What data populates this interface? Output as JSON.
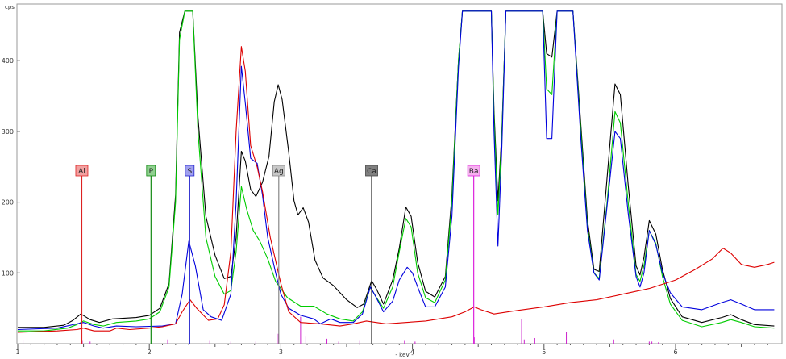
{
  "chart_data": {
    "type": "line",
    "title": "",
    "xlabel": "- keV -",
    "ylabel": "cps",
    "xlim": [
      1.0,
      6.75
    ],
    "ylim": [
      0,
      470
    ],
    "grid": false,
    "legend": "none",
    "x_ticks": [
      1,
      2,
      3,
      4,
      5,
      6
    ],
    "y_ticks": [
      100,
      200,
      300,
      400
    ],
    "series": [
      {
        "color": "#000000",
        "points": [
          [
            1.0,
            23
          ],
          [
            1.2,
            23
          ],
          [
            1.35,
            26
          ],
          [
            1.42,
            33
          ],
          [
            1.48,
            42
          ],
          [
            1.55,
            34
          ],
          [
            1.62,
            30
          ],
          [
            1.72,
            35
          ],
          [
            1.9,
            37
          ],
          [
            2.0,
            40
          ],
          [
            2.08,
            50
          ],
          [
            2.15,
            85
          ],
          [
            2.2,
            210
          ],
          [
            2.23,
            440
          ],
          [
            2.27,
            470
          ],
          [
            2.33,
            470
          ],
          [
            2.37,
            320
          ],
          [
            2.43,
            180
          ],
          [
            2.5,
            125
          ],
          [
            2.57,
            92
          ],
          [
            2.62,
            95
          ],
          [
            2.66,
            150
          ],
          [
            2.7,
            272
          ],
          [
            2.73,
            258
          ],
          [
            2.77,
            218
          ],
          [
            2.81,
            208
          ],
          [
            2.86,
            228
          ],
          [
            2.91,
            265
          ],
          [
            2.95,
            342
          ],
          [
            2.98,
            366
          ],
          [
            3.01,
            345
          ],
          [
            3.06,
            270
          ],
          [
            3.1,
            202
          ],
          [
            3.13,
            182
          ],
          [
            3.17,
            192
          ],
          [
            3.21,
            172
          ],
          [
            3.26,
            118
          ],
          [
            3.32,
            93
          ],
          [
            3.4,
            82
          ],
          [
            3.5,
            62
          ],
          [
            3.58,
            51
          ],
          [
            3.63,
            56
          ],
          [
            3.69,
            89
          ],
          [
            3.73,
            76
          ],
          [
            3.78,
            56
          ],
          [
            3.85,
            90
          ],
          [
            3.9,
            135
          ],
          [
            3.95,
            193
          ],
          [
            3.99,
            180
          ],
          [
            4.04,
            115
          ],
          [
            4.1,
            74
          ],
          [
            4.17,
            66
          ],
          [
            4.25,
            95
          ],
          [
            4.3,
            210
          ],
          [
            4.35,
            400
          ],
          [
            4.38,
            470
          ],
          [
            4.6,
            470
          ],
          [
            4.62,
            330
          ],
          [
            4.65,
            202
          ],
          [
            4.68,
            300
          ],
          [
            4.71,
            470
          ],
          [
            4.99,
            470
          ],
          [
            5.02,
            410
          ],
          [
            5.06,
            405
          ],
          [
            5.1,
            470
          ],
          [
            5.22,
            470
          ],
          [
            5.28,
            310
          ],
          [
            5.33,
            175
          ],
          [
            5.38,
            105
          ],
          [
            5.42,
            102
          ],
          [
            5.48,
            235
          ],
          [
            5.54,
            367
          ],
          [
            5.58,
            352
          ],
          [
            5.64,
            225
          ],
          [
            5.7,
            110
          ],
          [
            5.73,
            97
          ],
          [
            5.76,
            122
          ],
          [
            5.8,
            174
          ],
          [
            5.85,
            155
          ],
          [
            5.9,
            105
          ],
          [
            5.96,
            64
          ],
          [
            6.05,
            38
          ],
          [
            6.2,
            30
          ],
          [
            6.35,
            37
          ],
          [
            6.42,
            41
          ],
          [
            6.5,
            34
          ],
          [
            6.6,
            27
          ],
          [
            6.75,
            25
          ]
        ]
      },
      {
        "color": "#00cc00",
        "points": [
          [
            1.0,
            18
          ],
          [
            1.2,
            18
          ],
          [
            1.38,
            22
          ],
          [
            1.45,
            27
          ],
          [
            1.5,
            32
          ],
          [
            1.58,
            27
          ],
          [
            1.65,
            25
          ],
          [
            1.75,
            30
          ],
          [
            1.9,
            32
          ],
          [
            2.0,
            35
          ],
          [
            2.08,
            45
          ],
          [
            2.15,
            80
          ],
          [
            2.2,
            200
          ],
          [
            2.23,
            430
          ],
          [
            2.27,
            470
          ],
          [
            2.33,
            470
          ],
          [
            2.37,
            300
          ],
          [
            2.43,
            150
          ],
          [
            2.5,
            95
          ],
          [
            2.57,
            70
          ],
          [
            2.62,
            75
          ],
          [
            2.66,
            130
          ],
          [
            2.7,
            222
          ],
          [
            2.74,
            190
          ],
          [
            2.79,
            160
          ],
          [
            2.84,
            145
          ],
          [
            2.9,
            120
          ],
          [
            2.96,
            88
          ],
          [
            3.05,
            65
          ],
          [
            3.15,
            53
          ],
          [
            3.25,
            53
          ],
          [
            3.35,
            42
          ],
          [
            3.45,
            35
          ],
          [
            3.55,
            32
          ],
          [
            3.62,
            45
          ],
          [
            3.68,
            80
          ],
          [
            3.72,
            67
          ],
          [
            3.78,
            50
          ],
          [
            3.85,
            80
          ],
          [
            3.9,
            130
          ],
          [
            3.95,
            177
          ],
          [
            3.99,
            165
          ],
          [
            4.04,
            100
          ],
          [
            4.1,
            65
          ],
          [
            4.17,
            58
          ],
          [
            4.25,
            90
          ],
          [
            4.3,
            200
          ],
          [
            4.35,
            400
          ],
          [
            4.38,
            470
          ],
          [
            4.6,
            470
          ],
          [
            4.62,
            320
          ],
          [
            4.65,
            182
          ],
          [
            4.68,
            295
          ],
          [
            4.71,
            470
          ],
          [
            4.99,
            470
          ],
          [
            5.02,
            360
          ],
          [
            5.06,
            352
          ],
          [
            5.1,
            470
          ],
          [
            5.22,
            470
          ],
          [
            5.28,
            300
          ],
          [
            5.33,
            165
          ],
          [
            5.38,
            100
          ],
          [
            5.42,
            92
          ],
          [
            5.48,
            200
          ],
          [
            5.54,
            328
          ],
          [
            5.58,
            312
          ],
          [
            5.64,
            200
          ],
          [
            5.7,
            98
          ],
          [
            5.73,
            88
          ],
          [
            5.76,
            110
          ],
          [
            5.8,
            160
          ],
          [
            5.85,
            142
          ],
          [
            5.9,
            95
          ],
          [
            5.96,
            56
          ],
          [
            6.05,
            33
          ],
          [
            6.2,
            24
          ],
          [
            6.35,
            30
          ],
          [
            6.42,
            34
          ],
          [
            6.5,
            30
          ],
          [
            6.6,
            24
          ],
          [
            6.75,
            22
          ]
        ]
      },
      {
        "color": "#0000dd",
        "points": [
          [
            1.0,
            20
          ],
          [
            1.3,
            22
          ],
          [
            1.45,
            28
          ],
          [
            1.5,
            30
          ],
          [
            1.58,
            25
          ],
          [
            1.65,
            22
          ],
          [
            1.75,
            25
          ],
          [
            1.9,
            24
          ],
          [
            2.1,
            25
          ],
          [
            2.2,
            28
          ],
          [
            2.25,
            70
          ],
          [
            2.3,
            145
          ],
          [
            2.35,
            110
          ],
          [
            2.41,
            48
          ],
          [
            2.47,
            38
          ],
          [
            2.55,
            33
          ],
          [
            2.62,
            70
          ],
          [
            2.66,
            200
          ],
          [
            2.7,
            392
          ],
          [
            2.73,
            340
          ],
          [
            2.77,
            262
          ],
          [
            2.82,
            255
          ],
          [
            2.86,
            210
          ],
          [
            2.9,
            150
          ],
          [
            2.96,
            100
          ],
          [
            3.0,
            70
          ],
          [
            3.06,
            50
          ],
          [
            3.15,
            40
          ],
          [
            3.25,
            35
          ],
          [
            3.3,
            28
          ],
          [
            3.38,
            35
          ],
          [
            3.45,
            30
          ],
          [
            3.55,
            30
          ],
          [
            3.62,
            42
          ],
          [
            3.68,
            80
          ],
          [
            3.72,
            67
          ],
          [
            3.78,
            45
          ],
          [
            3.85,
            60
          ],
          [
            3.9,
            90
          ],
          [
            3.96,
            108
          ],
          [
            4.0,
            100
          ],
          [
            4.05,
            75
          ],
          [
            4.1,
            52
          ],
          [
            4.17,
            52
          ],
          [
            4.25,
            80
          ],
          [
            4.3,
            180
          ],
          [
            4.35,
            390
          ],
          [
            4.38,
            470
          ],
          [
            4.6,
            470
          ],
          [
            4.62,
            300
          ],
          [
            4.65,
            138
          ],
          [
            4.68,
            280
          ],
          [
            4.71,
            470
          ],
          [
            4.99,
            470
          ],
          [
            5.02,
            290
          ],
          [
            5.06,
            290
          ],
          [
            5.1,
            470
          ],
          [
            5.22,
            470
          ],
          [
            5.28,
            290
          ],
          [
            5.33,
            160
          ],
          [
            5.38,
            100
          ],
          [
            5.42,
            90
          ],
          [
            5.48,
            195
          ],
          [
            5.54,
            300
          ],
          [
            5.58,
            290
          ],
          [
            5.64,
            185
          ],
          [
            5.7,
            95
          ],
          [
            5.73,
            80
          ],
          [
            5.76,
            100
          ],
          [
            5.8,
            160
          ],
          [
            5.85,
            140
          ],
          [
            5.9,
            100
          ],
          [
            5.96,
            72
          ],
          [
            6.05,
            52
          ],
          [
            6.2,
            48
          ],
          [
            6.35,
            58
          ],
          [
            6.42,
            62
          ],
          [
            6.5,
            56
          ],
          [
            6.6,
            48
          ],
          [
            6.75,
            48
          ]
        ]
      },
      {
        "color": "#dd0000",
        "points": [
          [
            1.0,
            16
          ],
          [
            1.3,
            18
          ],
          [
            1.45,
            20
          ],
          [
            1.5,
            22
          ],
          [
            1.58,
            18
          ],
          [
            1.7,
            18
          ],
          [
            1.75,
            22
          ],
          [
            1.85,
            20
          ],
          [
            2.0,
            22
          ],
          [
            2.1,
            24
          ],
          [
            2.2,
            28
          ],
          [
            2.25,
            45
          ],
          [
            2.31,
            62
          ],
          [
            2.36,
            50
          ],
          [
            2.45,
            33
          ],
          [
            2.52,
            35
          ],
          [
            2.57,
            55
          ],
          [
            2.62,
            130
          ],
          [
            2.66,
            300
          ],
          [
            2.7,
            420
          ],
          [
            2.73,
            385
          ],
          [
            2.77,
            280
          ],
          [
            2.82,
            250
          ],
          [
            2.86,
            215
          ],
          [
            2.92,
            150
          ],
          [
            3.0,
            85
          ],
          [
            3.06,
            45
          ],
          [
            3.15,
            30
          ],
          [
            3.3,
            28
          ],
          [
            3.45,
            25
          ],
          [
            3.55,
            28
          ],
          [
            3.65,
            32
          ],
          [
            3.8,
            28
          ],
          [
            3.95,
            30
          ],
          [
            4.1,
            32
          ],
          [
            4.3,
            38
          ],
          [
            4.4,
            45
          ],
          [
            4.47,
            52
          ],
          [
            4.52,
            48
          ],
          [
            4.62,
            42
          ],
          [
            4.8,
            47
          ],
          [
            5.0,
            52
          ],
          [
            5.2,
            58
          ],
          [
            5.4,
            62
          ],
          [
            5.6,
            70
          ],
          [
            5.8,
            78
          ],
          [
            6.0,
            90
          ],
          [
            6.15,
            105
          ],
          [
            6.28,
            120
          ],
          [
            6.36,
            135
          ],
          [
            6.42,
            128
          ],
          [
            6.5,
            112
          ],
          [
            6.6,
            108
          ],
          [
            6.7,
            112
          ],
          [
            6.75,
            115
          ]
        ]
      }
    ],
    "element_markers": [
      {
        "label": "Al",
        "energy": 1.487,
        "fill": "#f2a0a0",
        "border": "#dd2222",
        "line": "#dd2222"
      },
      {
        "label": "P",
        "energy": 2.013,
        "fill": "#8fd08f",
        "border": "#118811",
        "line": "#118811"
      },
      {
        "label": "S",
        "energy": 2.307,
        "fill": "#a0a0f0",
        "border": "#2222cc",
        "line": "#2222cc"
      },
      {
        "label": "Ag",
        "energy": 2.984,
        "fill": "#c8c8c8",
        "border": "#888888",
        "line": "#888888"
      },
      {
        "label": "Ca",
        "energy": 3.69,
        "fill": "#808080",
        "border": "#444444",
        "line": "#222222"
      },
      {
        "label": "Ba",
        "energy": 4.466,
        "fill": "#f7b0f0",
        "border": "#dd22dd",
        "line": "#dd22dd"
      }
    ],
    "ticks_color": "#cc22cc"
  }
}
